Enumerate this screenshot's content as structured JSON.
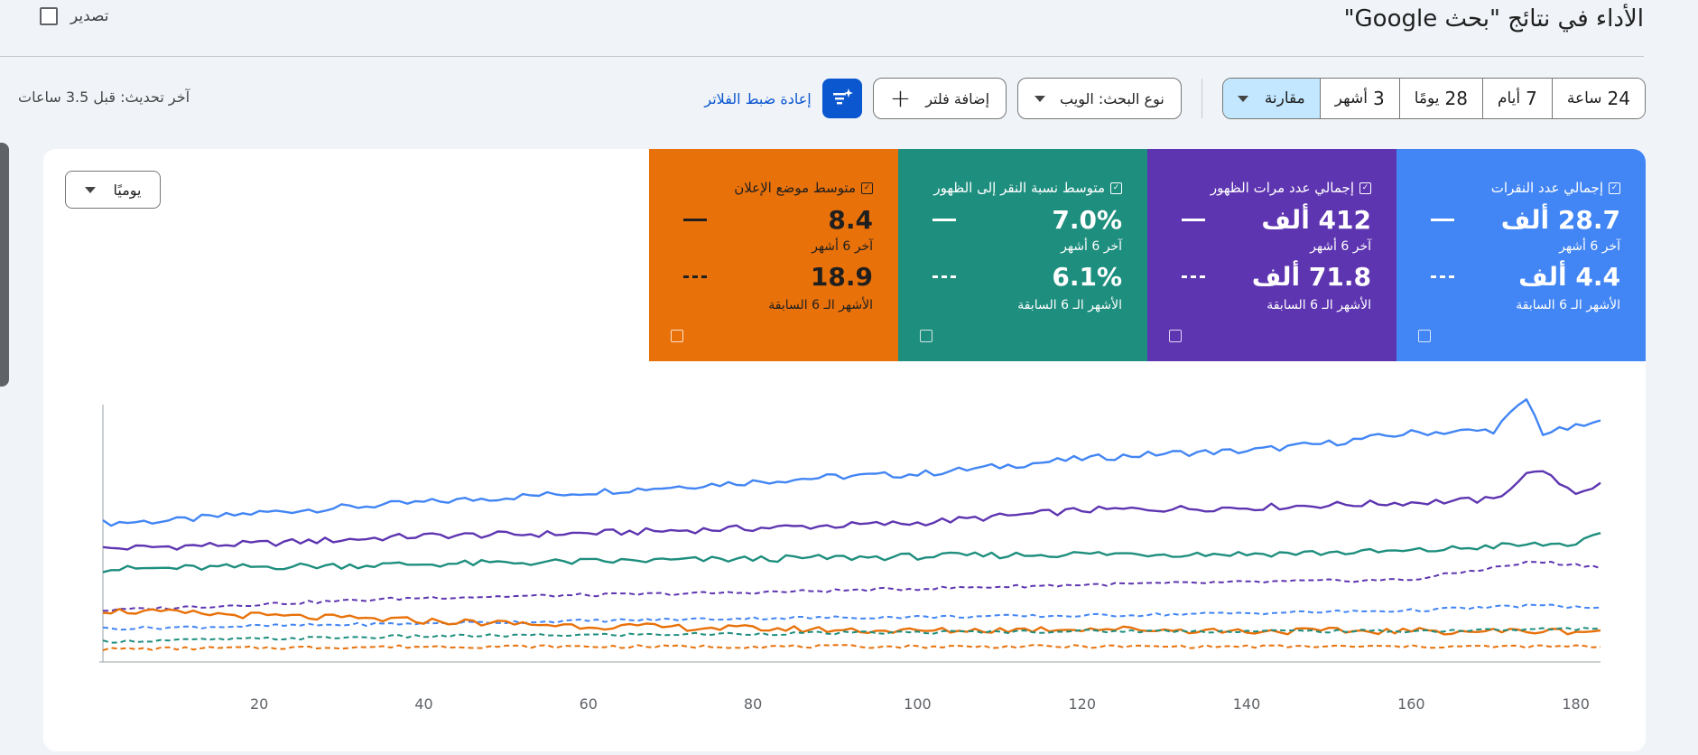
{
  "header": {
    "title": "الأداء في نتائج \"بحث Google\"",
    "export_label": "تصدير"
  },
  "toolbar": {
    "date_ranges": [
      {
        "num": "24",
        "unit": "ساعة"
      },
      {
        "num": "7",
        "unit": "أيام"
      },
      {
        "num": "28",
        "unit": "يومًا"
      },
      {
        "num": "3",
        "unit": "أشهر"
      }
    ],
    "compare_label": "مقارنة",
    "search_type_label": "نوع البحث: الويب",
    "add_filter_label": "إضافة فلتر",
    "reset_filters_label": "إعادة ضبط الفلاتر",
    "last_updated": "آخر تحديث: قبل 3.5 ساعات"
  },
  "metrics": [
    {
      "title": "إجمالي عدد النقرات",
      "value": "28.7 ألف",
      "value_label": "آخر 6 أشهر",
      "prev": "4.4 ألف",
      "prev_label": "الأشهر الـ 6 السابقة",
      "color": "#4285f4"
    },
    {
      "title": "إجمالي عدد مرات الظهور",
      "value": "412 ألف",
      "value_label": "آخر 6 أشهر",
      "prev": "71.8 ألف",
      "prev_label": "الأشهر الـ 6 السابقة",
      "color": "#5e35b1"
    },
    {
      "title": "متوسط نسبة النقر إلى الظهور",
      "value": "7.0%",
      "value_label": "آخر 6 أشهر",
      "prev": "6.1%",
      "prev_label": "الأشهر الـ 6 السابقة",
      "color": "#1e8e7e"
    },
    {
      "title": "متوسط موضع الإعلان",
      "value": "8.4",
      "value_label": "آخر 6 أشهر",
      "prev": "18.9",
      "prev_label": "الأشهر الـ 6 السابقة",
      "color": "#e8710a"
    }
  ],
  "granularity_label": "يوميًا",
  "chart_data": {
    "type": "line",
    "x_ticks": [
      "20",
      "40",
      "60",
      "80",
      "100",
      "120",
      "140",
      "160",
      "180"
    ],
    "xlim": [
      1,
      183
    ],
    "ylim": [
      0,
      100
    ],
    "grid": false,
    "series": [
      {
        "metric": "clicks",
        "period": "current",
        "color": "#4285f4",
        "dashed": false,
        "x": [
          1,
          10,
          20,
          30,
          40,
          50,
          60,
          70,
          80,
          90,
          100,
          110,
          120,
          130,
          140,
          150,
          160,
          170,
          174,
          176,
          178,
          183
        ],
        "y": [
          54,
          55,
          58,
          60,
          62,
          64,
          66,
          68,
          70,
          72,
          73,
          76,
          79,
          81,
          82,
          85,
          89,
          90,
          102,
          89,
          90,
          93
        ]
      },
      {
        "metric": "impressions",
        "period": "current",
        "color": "#5e35b1",
        "dashed": false,
        "x": [
          1,
          20,
          40,
          60,
          80,
          100,
          120,
          140,
          160,
          170,
          175,
          180,
          183
        ],
        "y": [
          44,
          46,
          49,
          50,
          52,
          54,
          59,
          60,
          62,
          63,
          75,
          66,
          69
        ]
      },
      {
        "metric": "ctr",
        "period": "current",
        "color": "#1e8e7e",
        "dashed": false,
        "x": [
          1,
          20,
          40,
          60,
          80,
          100,
          120,
          140,
          160,
          170,
          180,
          183
        ],
        "y": [
          36,
          37,
          38,
          39,
          40,
          41,
          42,
          42,
          43,
          45,
          46,
          49
        ]
      },
      {
        "metric": "impressions",
        "period": "previous",
        "color": "#5e35b1",
        "dashed": true,
        "x": [
          1,
          40,
          80,
          120,
          160,
          175,
          183
        ],
        "y": [
          20,
          25,
          27,
          30,
          32,
          39,
          37
        ]
      },
      {
        "metric": "clicks",
        "period": "previous",
        "color": "#4285f4",
        "dashed": true,
        "x": [
          1,
          40,
          80,
          120,
          160,
          175,
          183
        ],
        "y": [
          13,
          15,
          17,
          18,
          20,
          22,
          21
        ]
      },
      {
        "metric": "position",
        "period": "current",
        "color": "#e8710a",
        "dashed": false,
        "x": [
          1,
          20,
          40,
          60,
          80,
          100,
          120,
          140,
          160,
          183
        ],
        "y": [
          20,
          18,
          16,
          14,
          13,
          12,
          13,
          12,
          12,
          12
        ]
      },
      {
        "metric": "ctr",
        "period": "previous",
        "color": "#1e8e7e",
        "dashed": true,
        "x": [
          1,
          40,
          80,
          120,
          160,
          183
        ],
        "y": [
          8,
          10,
          11,
          12,
          12,
          13
        ]
      },
      {
        "metric": "position",
        "period": "previous",
        "color": "#e8710a",
        "dashed": true,
        "x": [
          1,
          40,
          80,
          120,
          160,
          183
        ],
        "y": [
          5,
          6,
          6,
          6,
          6,
          6
        ]
      }
    ]
  }
}
